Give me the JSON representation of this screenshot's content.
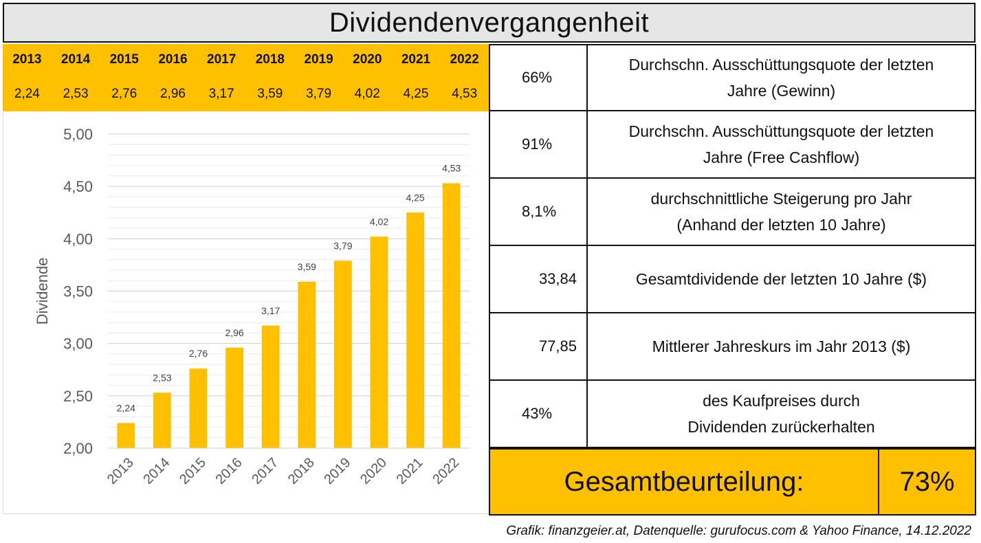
{
  "header": {
    "title": "Dividendenvergangenheit"
  },
  "years_table": {
    "years": [
      "2013",
      "2014",
      "2015",
      "2016",
      "2017",
      "2018",
      "2019",
      "2020",
      "2021",
      "2022"
    ],
    "values": [
      "2,24",
      "2,53",
      "2,76",
      "2,96",
      "3,17",
      "3,59",
      "3,79",
      "4,02",
      "4,25",
      "4,53"
    ]
  },
  "chart_data": {
    "type": "bar",
    "categories": [
      "2013",
      "2014",
      "2015",
      "2016",
      "2017",
      "2018",
      "2019",
      "2020",
      "2021",
      "2022"
    ],
    "values": [
      2.24,
      2.53,
      2.76,
      2.96,
      3.17,
      3.59,
      3.79,
      4.02,
      4.25,
      4.53
    ],
    "value_labels": [
      "2,24",
      "2,53",
      "2,76",
      "2,96",
      "3,17",
      "3,59",
      "3,79",
      "4,02",
      "4,25",
      "4,53"
    ],
    "ylabel": "Dividende",
    "xlabel": "",
    "ylim": [
      2.0,
      5.0
    ],
    "yticks": [
      2.0,
      2.5,
      3.0,
      3.5,
      4.0,
      4.5,
      5.0
    ],
    "ytick_labels": [
      "2,00",
      "2,50",
      "3,00",
      "3,50",
      "4,00",
      "4,50",
      "5,00"
    ],
    "grid": true,
    "bar_color": "#ffc000"
  },
  "metrics": [
    {
      "value": "66%",
      "align": "left",
      "description": "Durchschn. Ausschüttungsquote der letzten\nJahre (Gewinn)"
    },
    {
      "value": "91%",
      "align": "left",
      "description": "Durchschn. Ausschüttungsquote der letzten\nJahre (Free Cashflow)"
    },
    {
      "value": "8,1%",
      "align": "left",
      "description": "durchschnittliche Steigerung pro Jahr\n(Anhand der letzten 10 Jahre)"
    },
    {
      "value": "33,84",
      "align": "right",
      "description": "Gesamtdividende der letzten 10 Jahre ($)"
    },
    {
      "value": "77,85",
      "align": "right",
      "description": "Mittlerer Jahreskurs im Jahr 2013 ($)"
    },
    {
      "value": "43%",
      "align": "left",
      "description": "des Kaufpreises durch\nDividenden zurückerhalten"
    }
  ],
  "overall": {
    "label": "Gesamtbeurteilung:",
    "score": "73%"
  },
  "footer": {
    "source": "Grafik: finanzgeier.at, Datenquelle: gurufocus.com & Yahoo Finance, 14.12.2022"
  },
  "colors": {
    "accent": "#ffc000",
    "header_bg": "#e6e6e6",
    "text": "#111111",
    "axis_text": "#595959"
  }
}
